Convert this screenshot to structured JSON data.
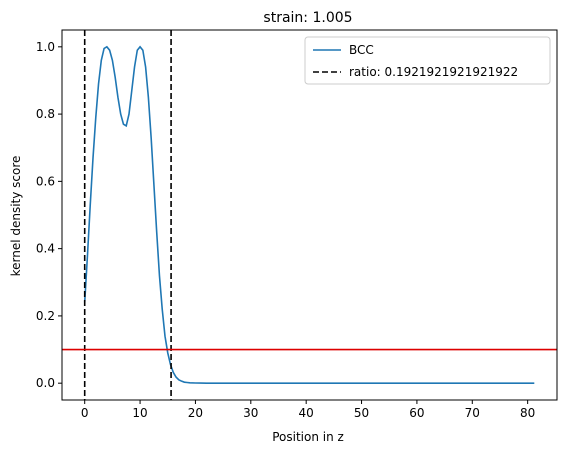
{
  "chart_data": {
    "type": "line",
    "title": "strain: 1.005",
    "xlabel": "Position in z",
    "ylabel": "kernel density score",
    "xlim": [
      -4.1,
      85.3
    ],
    "ylim": [
      -0.05,
      1.05
    ],
    "xticks": [
      0,
      10,
      20,
      30,
      40,
      50,
      60,
      70,
      80
    ],
    "yticks": [
      0.0,
      0.2,
      0.4,
      0.6,
      0.8,
      1.0
    ],
    "xtick_labels": [
      "0",
      "10",
      "20",
      "30",
      "40",
      "50",
      "60",
      "70",
      "80"
    ],
    "ytick_labels": [
      "0.0",
      "0.2",
      "0.4",
      "0.6",
      "0.8",
      "1.0"
    ],
    "grid": false,
    "legend_position": "upper right",
    "series": [
      {
        "name": "BCC",
        "color": "#1f77b4",
        "style": "solid",
        "x": [
          0,
          0.5,
          1,
          1.5,
          2,
          2.5,
          3,
          3.5,
          4,
          4.5,
          5,
          5.5,
          6,
          6.5,
          7,
          7.5,
          8,
          8.5,
          9,
          9.5,
          10,
          10.5,
          11,
          11.5,
          12,
          12.5,
          13,
          13.5,
          14,
          14.5,
          15,
          15.5,
          16,
          16.5,
          17,
          17.5,
          18,
          18.5,
          19,
          20,
          21,
          22,
          25,
          30,
          40,
          50,
          60,
          70,
          81.2
        ],
        "y": [
          0.24,
          0.38,
          0.53,
          0.67,
          0.79,
          0.89,
          0.96,
          0.995,
          1.0,
          0.99,
          0.96,
          0.91,
          0.85,
          0.8,
          0.77,
          0.765,
          0.8,
          0.87,
          0.94,
          0.99,
          1.0,
          0.99,
          0.94,
          0.85,
          0.73,
          0.59,
          0.45,
          0.32,
          0.22,
          0.14,
          0.09,
          0.055,
          0.032,
          0.018,
          0.01,
          0.006,
          0.003,
          0.002,
          0.001,
          0.0005,
          0.0002,
          0.0001,
          0.0,
          0.0,
          0.0,
          0.0,
          0.0,
          0.0,
          0.0
        ]
      }
    ],
    "vlines": [
      {
        "x": 0,
        "color": "#000000",
        "style": "dashed",
        "label": "ratio: 0.1921921921921922"
      },
      {
        "x": 15.6,
        "color": "#000000",
        "style": "dashed",
        "label": ""
      }
    ],
    "hlines": [
      {
        "y": 0.1,
        "color": "#dd0000",
        "style": "solid"
      }
    ],
    "legend": [
      {
        "label": "BCC",
        "color": "#1f77b4",
        "style": "solid"
      },
      {
        "label": "ratio: 0.1921921921921922",
        "color": "#000000",
        "style": "dashed"
      }
    ]
  }
}
